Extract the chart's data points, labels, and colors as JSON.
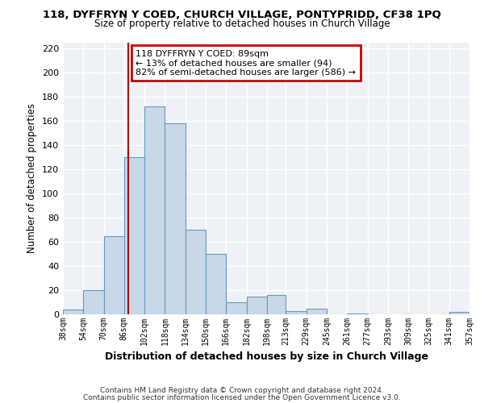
{
  "title": "118, DYFFRYN Y COED, CHURCH VILLAGE, PONTYPRIDD, CF38 1PQ",
  "subtitle": "Size of property relative to detached houses in Church Village",
  "xlabel": "Distribution of detached houses by size in Church Village",
  "ylabel": "Number of detached properties",
  "bar_color": "#c8d8e8",
  "bar_edge_color": "#6699bb",
  "bins": [
    38,
    54,
    70,
    86,
    102,
    118,
    134,
    150,
    166,
    182,
    198,
    213,
    229,
    245,
    261,
    277,
    293,
    309,
    325,
    341,
    357
  ],
  "bin_labels": [
    "38sqm",
    "54sqm",
    "70sqm",
    "86sqm",
    "102sqm",
    "118sqm",
    "134sqm",
    "150sqm",
    "166sqm",
    "182sqm",
    "198sqm",
    "213sqm",
    "229sqm",
    "245sqm",
    "261sqm",
    "277sqm",
    "293sqm",
    "309sqm",
    "325sqm",
    "341sqm",
    "357sqm"
  ],
  "counts": [
    4,
    20,
    65,
    130,
    172,
    158,
    70,
    50,
    10,
    15,
    16,
    3,
    5,
    0,
    1,
    0,
    0,
    0,
    0,
    2
  ],
  "property_line_x": 89,
  "ylim": [
    0,
    225
  ],
  "yticks": [
    0,
    20,
    40,
    60,
    80,
    100,
    120,
    140,
    160,
    180,
    200,
    220
  ],
  "annotation_title": "118 DYFFRYN Y COED: 89sqm",
  "annotation_line1": "← 13% of detached houses are smaller (94)",
  "annotation_line2": "82% of semi-detached houses are larger (586) →",
  "annotation_box_color": "#ffffff",
  "annotation_box_edge": "#cc0000",
  "property_line_color": "#aa0000",
  "footnote1": "Contains HM Land Registry data © Crown copyright and database right 2024.",
  "footnote2": "Contains public sector information licensed under the Open Government Licence v3.0.",
  "background_color": "#eef2f7"
}
